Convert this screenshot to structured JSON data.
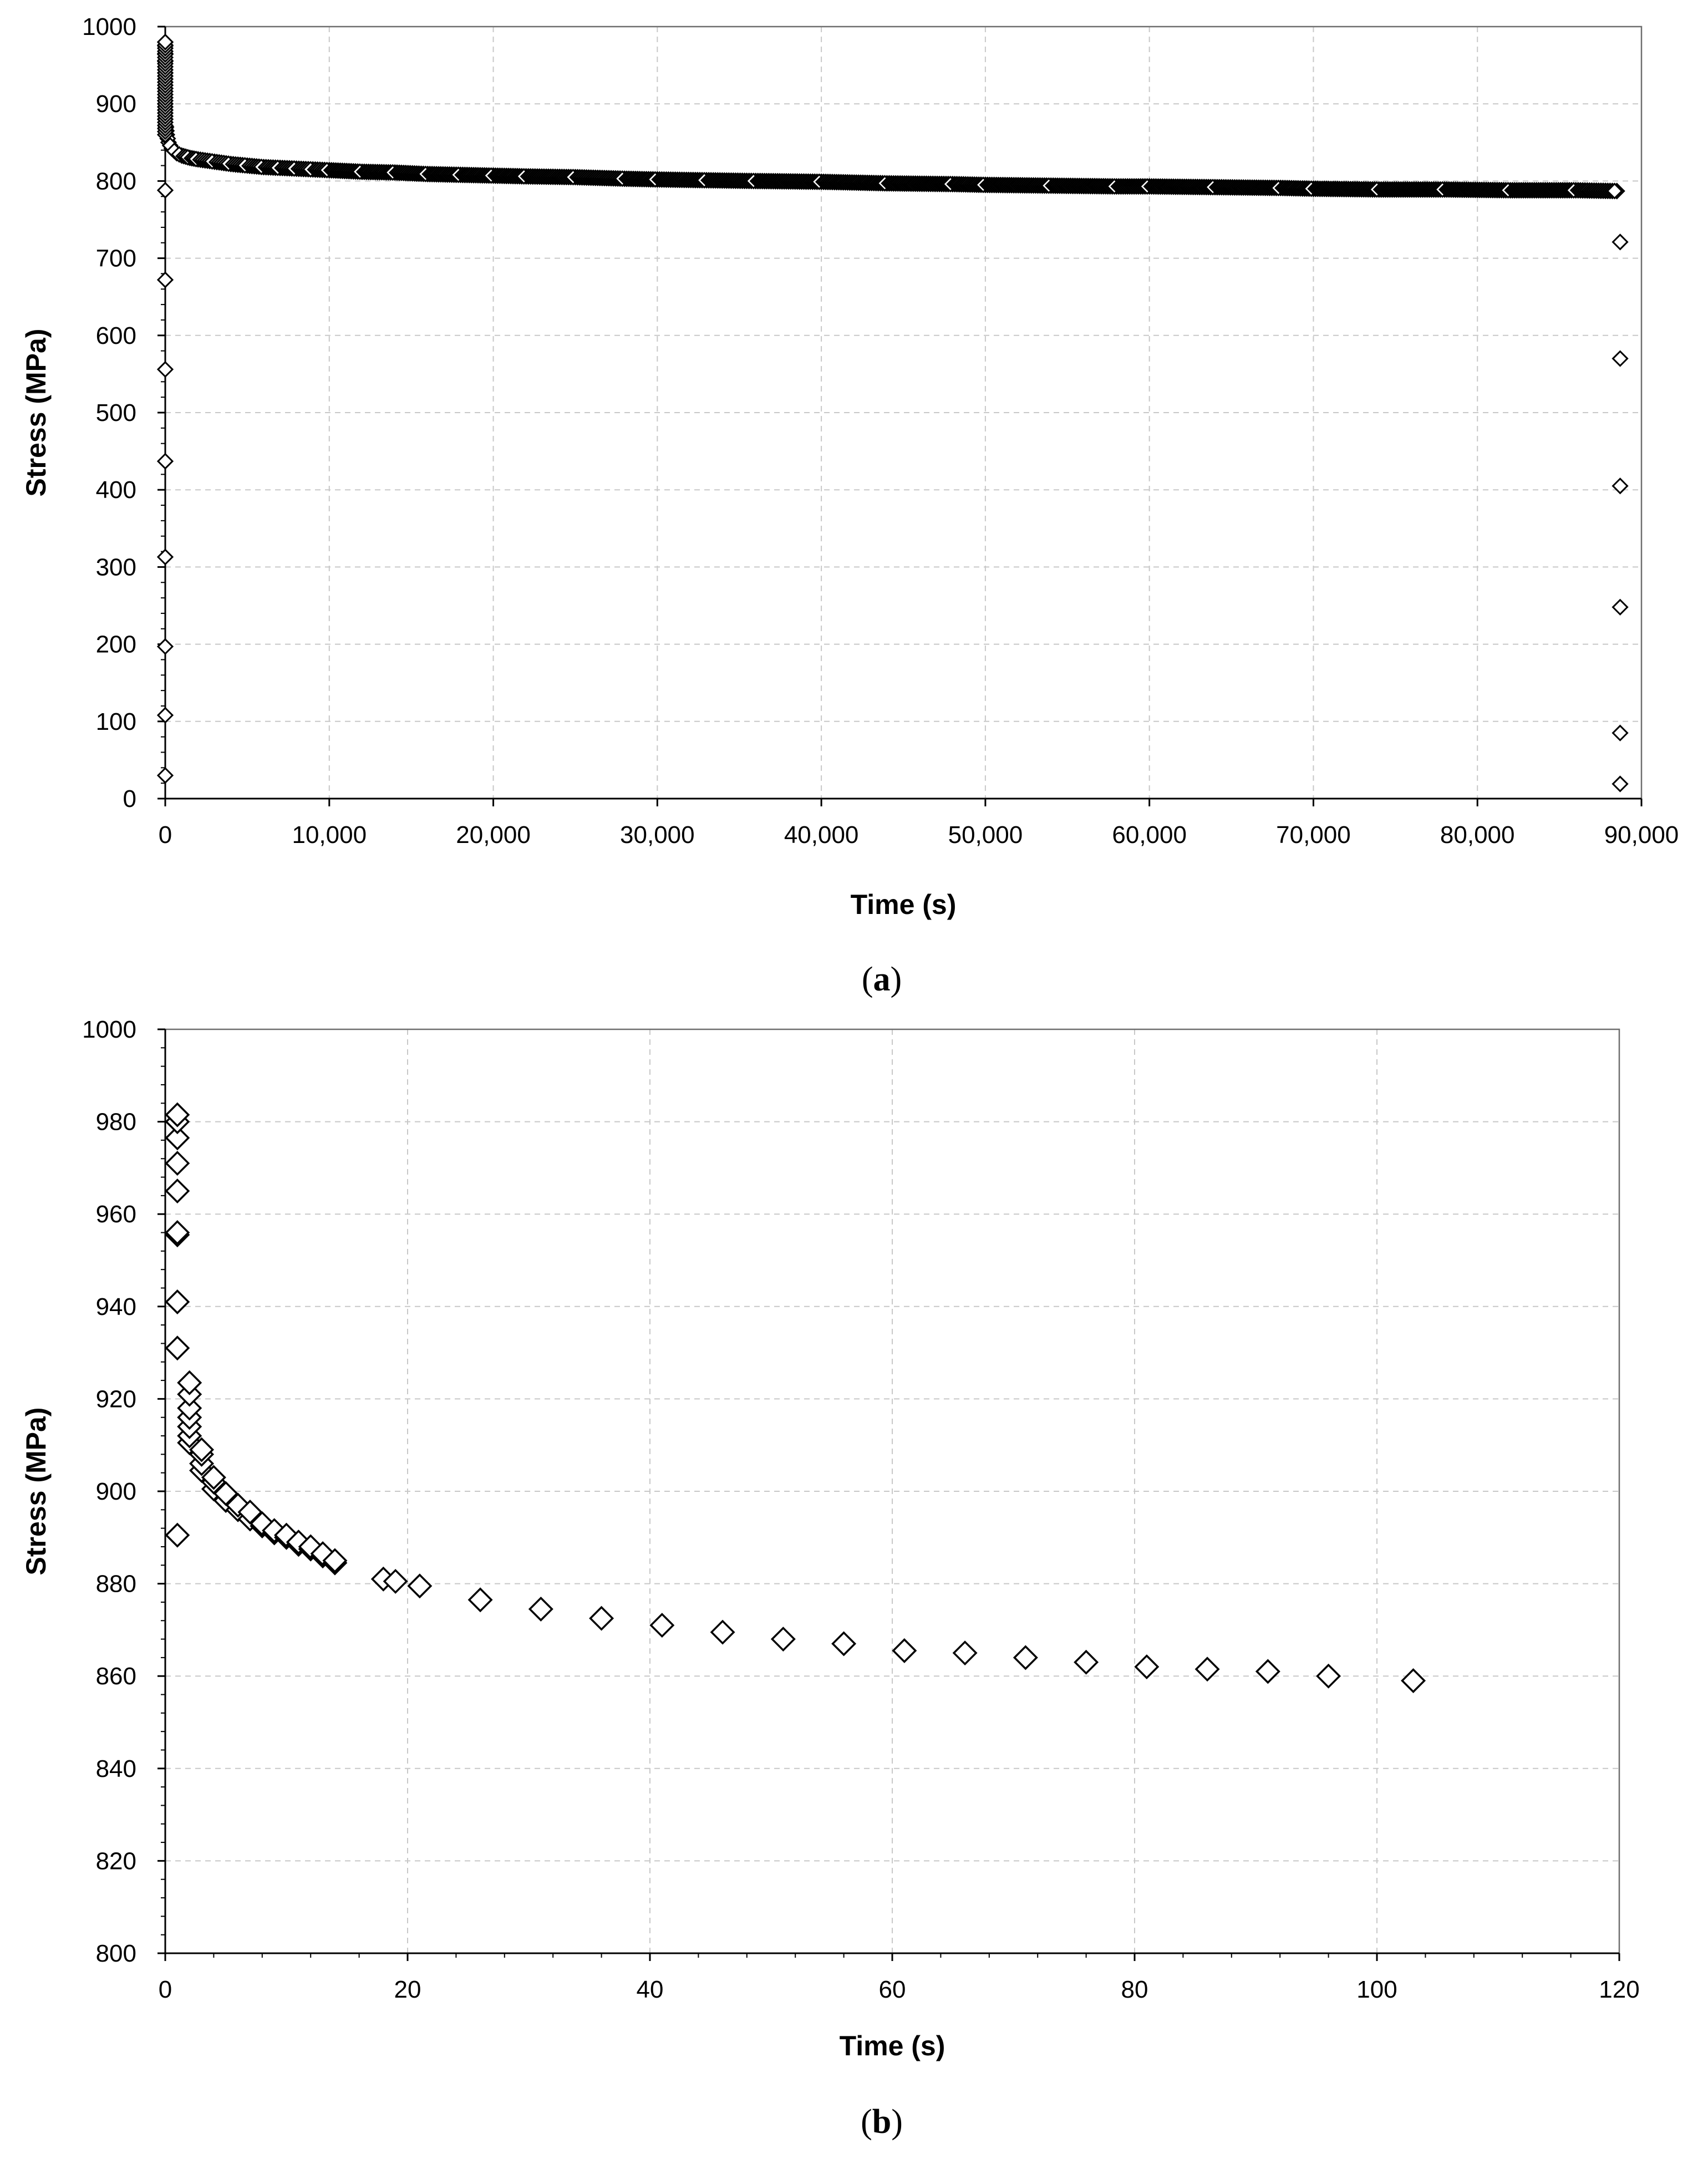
{
  "chart_data": [
    {
      "id": "a",
      "type": "scatter",
      "caption_open": "(",
      "caption_letter": "a",
      "caption_close": ")",
      "xlabel": "Time (s)",
      "ylabel": "Stress (MPa)",
      "xlim": [
        0,
        90000
      ],
      "ylim": [
        0,
        1000
      ],
      "xticks": [
        0,
        10000,
        20000,
        30000,
        40000,
        50000,
        60000,
        70000,
        80000,
        90000
      ],
      "xtick_labels": [
        "0",
        "10,000",
        "20,000",
        "30,000",
        "40,000",
        "50,000",
        "60,000",
        "70,000",
        "80,000",
        "90,000"
      ],
      "yticks": [
        0,
        100,
        200,
        300,
        400,
        500,
        600,
        700,
        800,
        900,
        1000
      ],
      "ytick_labels": [
        "0",
        "100",
        "200",
        "300",
        "400",
        "500",
        "600",
        "700",
        "800",
        "900",
        "1000"
      ],
      "grid": true,
      "marker": "open-diamond",
      "series": [
        {
          "points": [
            [
              0,
              30
            ],
            [
              0,
              108
            ],
            [
              0,
              197
            ],
            [
              0,
              313
            ],
            [
              0,
              437
            ],
            [
              0,
              556
            ],
            [
              0,
              672
            ],
            [
              0,
              788
            ],
            [
              0,
              880
            ],
            [
              0,
              900
            ],
            [
              0,
              920
            ],
            [
              0,
              940
            ],
            [
              0,
              955
            ],
            [
              0,
              965
            ],
            [
              0,
              975
            ],
            [
              0,
              980
            ],
            [
              50,
              870
            ],
            [
              100,
              860
            ],
            [
              200,
              850
            ],
            [
              400,
              842
            ],
            [
              700,
              836
            ],
            [
              1000,
              833
            ],
            [
              1500,
              830
            ],
            [
              2000,
              828
            ],
            [
              3000,
              825
            ],
            [
              4000,
              822
            ],
            [
              5000,
              820
            ],
            [
              6000,
              818
            ],
            [
              7000,
              817
            ],
            [
              8000,
              816
            ],
            [
              9000,
              815
            ],
            [
              10000,
              814
            ],
            [
              12000,
              812
            ],
            [
              14000,
              811
            ],
            [
              16000,
              809
            ],
            [
              18000,
              808
            ],
            [
              20000,
              807
            ],
            [
              22000,
              806
            ],
            [
              25000,
              805
            ],
            [
              28000,
              803
            ],
            [
              30000,
              802
            ],
            [
              33000,
              801
            ],
            [
              36000,
              800
            ],
            [
              40000,
              799
            ],
            [
              44000,
              797
            ],
            [
              48000,
              796
            ],
            [
              50000,
              795
            ],
            [
              54000,
              794
            ],
            [
              58000,
              793
            ],
            [
              60000,
              793
            ],
            [
              64000,
              792
            ],
            [
              68000,
              791
            ],
            [
              70000,
              790
            ],
            [
              74000,
              789
            ],
            [
              78000,
              789
            ],
            [
              82000,
              788
            ],
            [
              86000,
              788
            ],
            [
              88500,
              787
            ],
            [
              88700,
              721
            ],
            [
              88700,
              570
            ],
            [
              88700,
              405
            ],
            [
              88700,
              248
            ],
            [
              88700,
              85
            ],
            [
              88700,
              19
            ]
          ]
        }
      ]
    },
    {
      "id": "b",
      "type": "scatter",
      "caption_open": "(",
      "caption_letter": "b",
      "caption_close": ")",
      "xlabel": "Time (s)",
      "ylabel": "Stress (MPa)",
      "xlim": [
        0,
        120
      ],
      "ylim": [
        800,
        1000
      ],
      "xticks": [
        0,
        20,
        40,
        60,
        80,
        100,
        120
      ],
      "xtick_labels": [
        "0",
        "20",
        "40",
        "60",
        "80",
        "100",
        "120"
      ],
      "yticks": [
        800,
        820,
        840,
        860,
        880,
        900,
        920,
        940,
        960,
        980,
        1000
      ],
      "ytick_labels": [
        "800",
        "820",
        "840",
        "860",
        "880",
        "900",
        "920",
        "940",
        "960",
        "980",
        "1000"
      ],
      "grid": true,
      "marker": "open-diamond",
      "series": [
        {
          "points": [
            [
              1,
              890.5
            ],
            [
              1,
              931
            ],
            [
              1,
              941
            ],
            [
              1,
              955.5
            ],
            [
              1,
              956
            ],
            [
              1,
              965
            ],
            [
              1,
              971
            ],
            [
              1,
              976.5
            ],
            [
              1,
              980
            ],
            [
              1,
              981.5
            ],
            [
              2,
              910.5
            ],
            [
              2,
              912
            ],
            [
              2,
              914
            ],
            [
              2,
              916
            ],
            [
              2,
              918
            ],
            [
              2,
              921
            ],
            [
              2,
              923.5
            ],
            [
              3,
              904.5
            ],
            [
              3,
              906
            ],
            [
              3,
              908
            ],
            [
              3,
              909
            ],
            [
              4,
              900.5
            ],
            [
              4,
              902
            ],
            [
              4,
              903
            ],
            [
              5,
              898
            ],
            [
              5,
              899.5
            ],
            [
              6,
              896
            ],
            [
              6,
              897
            ],
            [
              7,
              894
            ],
            [
              7,
              895.5
            ],
            [
              8,
              892.5
            ],
            [
              8,
              893
            ],
            [
              9,
              891
            ],
            [
              9,
              891.5
            ],
            [
              10,
              890
            ],
            [
              10,
              890.5
            ],
            [
              11,
              888.5
            ],
            [
              11,
              889
            ],
            [
              12,
              887.5
            ],
            [
              12,
              888
            ],
            [
              13,
              886
            ],
            [
              13,
              886.5
            ],
            [
              14,
              884.5
            ],
            [
              14,
              885
            ],
            [
              18,
              881
            ],
            [
              19,
              880.5
            ],
            [
              21,
              879.5
            ],
            [
              26,
              876.5
            ],
            [
              31,
              874.5
            ],
            [
              36,
              872.5
            ],
            [
              41,
              871
            ],
            [
              46,
              869.5
            ],
            [
              51,
              868
            ],
            [
              56,
              867
            ],
            [
              61,
              865.5
            ],
            [
              66,
              865
            ],
            [
              71,
              864
            ],
            [
              76,
              863
            ],
            [
              81,
              862
            ],
            [
              86,
              861.5
            ],
            [
              91,
              861
            ],
            [
              96,
              860
            ],
            [
              103,
              859
            ]
          ]
        }
      ]
    }
  ]
}
